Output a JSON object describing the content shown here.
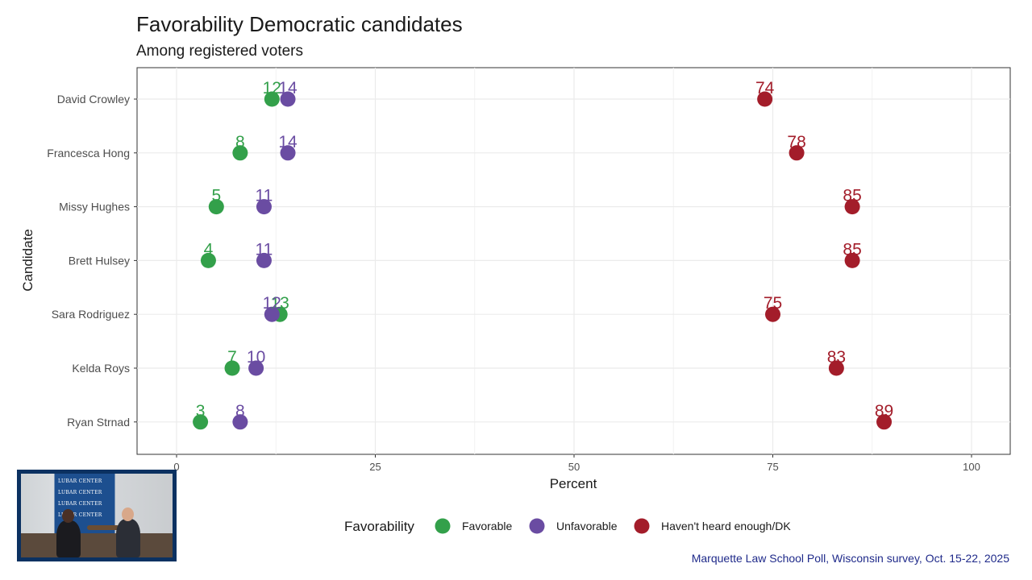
{
  "title": "Favorability Democratic candidates",
  "subtitle": "Among registered voters",
  "source_note": "Marquette Law School Poll, Wisconsin survey, Oct. 15-22, 2025",
  "colors": {
    "favorable": "#33a04a",
    "unfavorable": "#6a4ca2",
    "dk": "#a31d2a",
    "source": "#1f2a8a"
  },
  "legend": {
    "title": "Favorability",
    "items": [
      {
        "label": "Favorable",
        "color": "#33a04a"
      },
      {
        "label": "Unfavorable",
        "color": "#6a4ca2"
      },
      {
        "label": "Haven't heard enough/DK",
        "color": "#a31d2a"
      }
    ]
  },
  "video": {
    "banner_text": "LUBAR CENTER"
  },
  "chart_data": {
    "type": "scatter",
    "title": "Favorability Democratic candidates",
    "subtitle": "Among registered voters",
    "xlabel": "Percent",
    "ylabel": "Candidate",
    "xlim": [
      -5,
      105
    ],
    "x_ticks": [
      0,
      25,
      50,
      75,
      100
    ],
    "x_tick_labels": [
      "0",
      "25",
      "50",
      "75",
      "100"
    ],
    "grid": true,
    "legend_position": "bottom",
    "categories": [
      "David Crowley",
      "Francesca Hong",
      "Missy Hughes",
      "Brett Hulsey",
      "Sara Rodriguez",
      "Kelda Roys",
      "Ryan Strnad"
    ],
    "series": [
      {
        "name": "Favorable",
        "color": "#33a04a",
        "values": [
          12,
          8,
          5,
          4,
          13,
          7,
          3
        ]
      },
      {
        "name": "Unfavorable",
        "color": "#6a4ca2",
        "values": [
          14,
          14,
          11,
          11,
          12,
          10,
          8
        ]
      },
      {
        "name": "Haven't heard enough/DK",
        "color": "#a31d2a",
        "values": [
          74,
          78,
          85,
          85,
          75,
          83,
          89
        ]
      }
    ]
  }
}
